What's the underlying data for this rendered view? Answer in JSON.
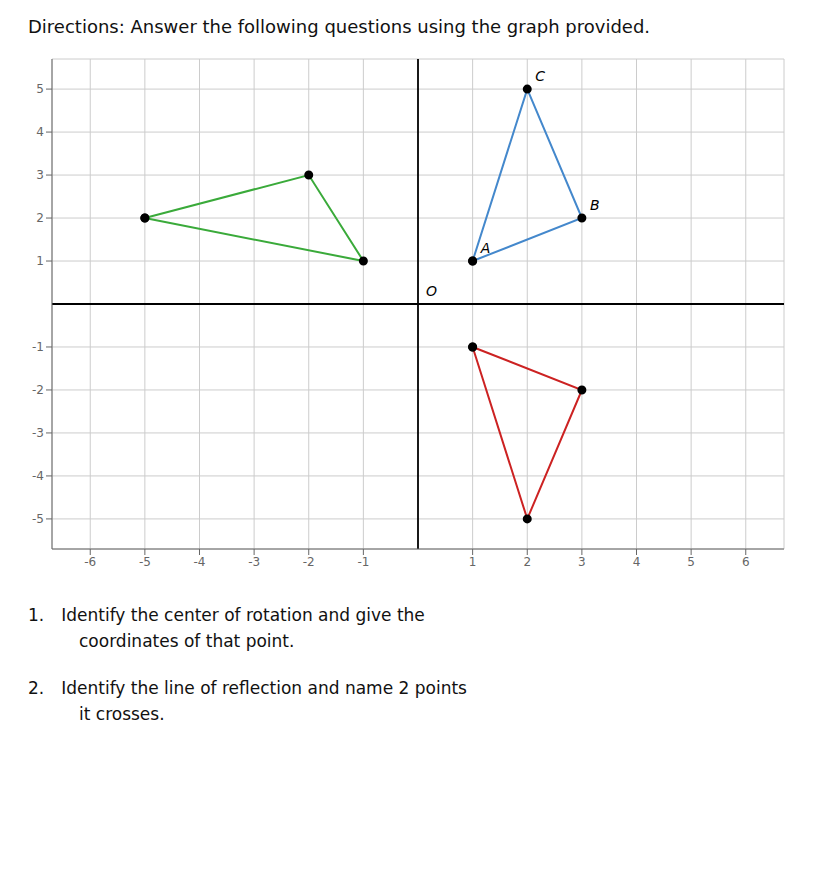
{
  "chart_data": {
    "type": "line",
    "title": "Directions: Answer the following questions using the graph provided.",
    "xlim": [
      -6.7,
      6.7
    ],
    "ylim": [
      -5.7,
      5.7
    ],
    "xticks": [
      -6,
      -5,
      -4,
      -3,
      -2,
      -1,
      1,
      2,
      3,
      4,
      5,
      6
    ],
    "yticks": [
      -5,
      -4,
      -3,
      -2,
      -1,
      1,
      2,
      3,
      4,
      5
    ],
    "grid": true,
    "series": [
      {
        "color": "#3aaa3a",
        "marker": "o",
        "x": [
          -5,
          -2,
          -1,
          -5
        ],
        "values": [
          2,
          3,
          1,
          2
        ]
      },
      {
        "color": "#4488cc",
        "marker": "o",
        "x": [
          1,
          2,
          3,
          1
        ],
        "values": [
          1,
          5,
          2,
          1
        ]
      },
      {
        "color": "#cc2222",
        "marker": "o",
        "x": [
          1,
          3,
          2,
          1
        ],
        "values": [
          -1,
          -2,
          -5,
          -1
        ]
      }
    ],
    "annotations": [
      {
        "text": "O",
        "x": 0,
        "y": 0
      },
      {
        "text": "A",
        "x": 1,
        "y": 1
      },
      {
        "text": "B",
        "x": 3,
        "y": 2
      },
      {
        "text": "C",
        "x": 2,
        "y": 5
      },
      {
        "text": "1. Identify the center of rotation and give the\n   coordinates of that point."
      },
      {
        "text": "2. Identify the line of reflection and name 2 points\n   it crosses."
      }
    ]
  }
}
